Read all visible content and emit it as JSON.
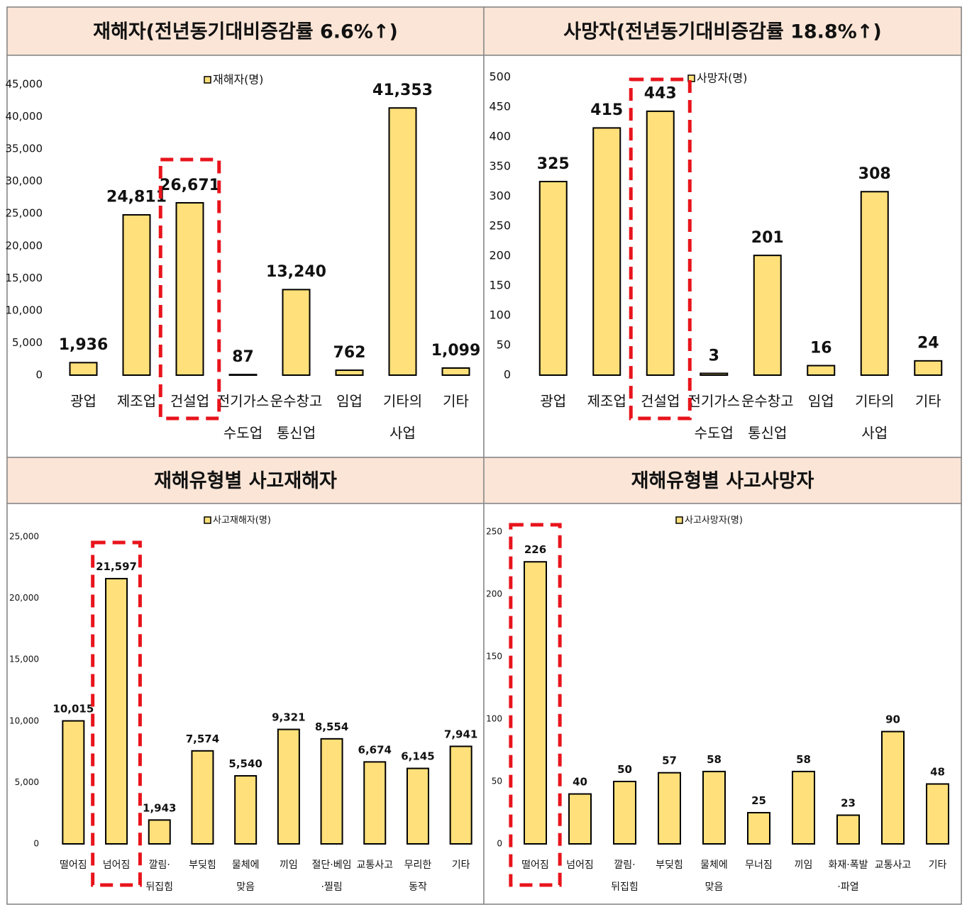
{
  "chart_data": [
    {
      "type": "bar",
      "title": "재해자(전년동기대비증감률 6.6%↑)",
      "color": "#FFE07A",
      "highlight": 2,
      "series": [
        {
          "name": "재해자(명)",
          "color": "#FFE07A",
          "values": [
            1936,
            24811,
            26671,
            87,
            13240,
            762,
            41353,
            1099
          ],
          "value_labels": [
            "1,936",
            "24,811",
            "26,671",
            "87",
            "13,240",
            "762",
            "41,353",
            "1,099"
          ]
        }
      ],
      "categories": [
        [
          "광업"
        ],
        [
          "제조업"
        ],
        [
          "건설업"
        ],
        [
          "전기가스",
          "수도업"
        ],
        [
          "운수창고",
          "통신업"
        ],
        [
          "임업"
        ],
        [
          "기타의",
          "사업"
        ],
        [
          "기타"
        ]
      ],
      "ylim": [
        0,
        45000
      ],
      "yticks": [
        0,
        {
          "value": 5000,
          "label": "5,000"
        },
        {
          "value": 10000,
          "label": "10,000"
        },
        {
          "value": 15000,
          "label": "15,000"
        },
        {
          "value": 20000,
          "label": "20,000"
        },
        {
          "value": 25000,
          "label": "25,000"
        },
        {
          "value": 30000,
          "label": "30,000"
        },
        {
          "value": 35000,
          "label": "35,000"
        },
        {
          "value": 40000,
          "label": "40,000"
        },
        {
          "value": 45000,
          "label": "45,000"
        }
      ]
    },
    {
      "type": "bar",
      "title": "사망자(전년동기대비증감률 18.8%↑)",
      "color": "#FFE07A",
      "highlight": 2,
      "series": [
        {
          "name": "사망자(명)",
          "color": "#FFE07A",
          "values": [
            325,
            415,
            443,
            3,
            201,
            16,
            308,
            24
          ]
        }
      ],
      "categories": [
        [
          "광업"
        ],
        [
          "제조업"
        ],
        [
          "건설업"
        ],
        [
          "전기가스",
          "수도업"
        ],
        [
          "운수창고",
          "통신업"
        ],
        [
          "임업"
        ],
        [
          "기타의",
          "사업"
        ],
        [
          "기타"
        ]
      ],
      "ylim": [
        0,
        500
      ],
      "yticks": [
        0,
        50,
        100,
        150,
        200,
        250,
        300,
        350,
        400,
        450,
        500
      ]
    },
    {
      "type": "bar",
      "title": "재해유형별 사고재해자",
      "color": "#FFE07A",
      "highlight": 1,
      "series": [
        {
          "name": "사고재해자(명)",
          "color": "#FFE07A",
          "values": [
            10015,
            21597,
            1943,
            7574,
            5540,
            9321,
            8554,
            6674,
            6145,
            7941
          ],
          "value_labels": [
            "10,015",
            "21,597",
            "1,943",
            "7,574",
            "5,540",
            "9,321",
            "8,554",
            "6,674",
            "6,145",
            "7,941"
          ]
        }
      ],
      "categories": [
        [
          "떨어짐"
        ],
        [
          "넘어짐"
        ],
        [
          "깔림·",
          "뒤집힘"
        ],
        [
          "부딪힘"
        ],
        [
          "물체에",
          "맞음"
        ],
        [
          "끼임"
        ],
        [
          "절단·베임",
          "·찔림"
        ],
        [
          "교통사고"
        ],
        [
          "무리한",
          "동작"
        ],
        [
          "기타"
        ]
      ],
      "ylim": [
        0,
        25000
      ],
      "yticks": [
        0,
        {
          "value": 5000,
          "label": "5,000"
        },
        {
          "value": 10000,
          "label": "10,000"
        },
        {
          "value": 15000,
          "label": "15,000"
        },
        {
          "value": 20000,
          "label": "20,000"
        },
        {
          "value": 25000,
          "label": "25,000"
        }
      ]
    },
    {
      "type": "bar",
      "title": "재해유형별 사고사망자",
      "color": "#FFE07A",
      "highlight": 0,
      "series": [
        {
          "name": "사고사망자(명)",
          "color": "#FFE07A",
          "values": [
            226,
            40,
            50,
            57,
            58,
            25,
            58,
            23,
            90,
            48
          ]
        }
      ],
      "categories": [
        [
          "떨어짐"
        ],
        [
          "넘어짐"
        ],
        [
          "깔림·",
          "뒤집힘"
        ],
        [
          "부딪힘"
        ],
        [
          "물체에",
          "맞음"
        ],
        [
          "무너짐"
        ],
        [
          "끼임"
        ],
        [
          "화재·폭발",
          "·파열"
        ],
        [
          "교통사고"
        ],
        [
          "기타"
        ]
      ],
      "ylim": [
        0,
        250
      ],
      "yticks": [
        0,
        50,
        100,
        150,
        200,
        250
      ]
    }
  ]
}
